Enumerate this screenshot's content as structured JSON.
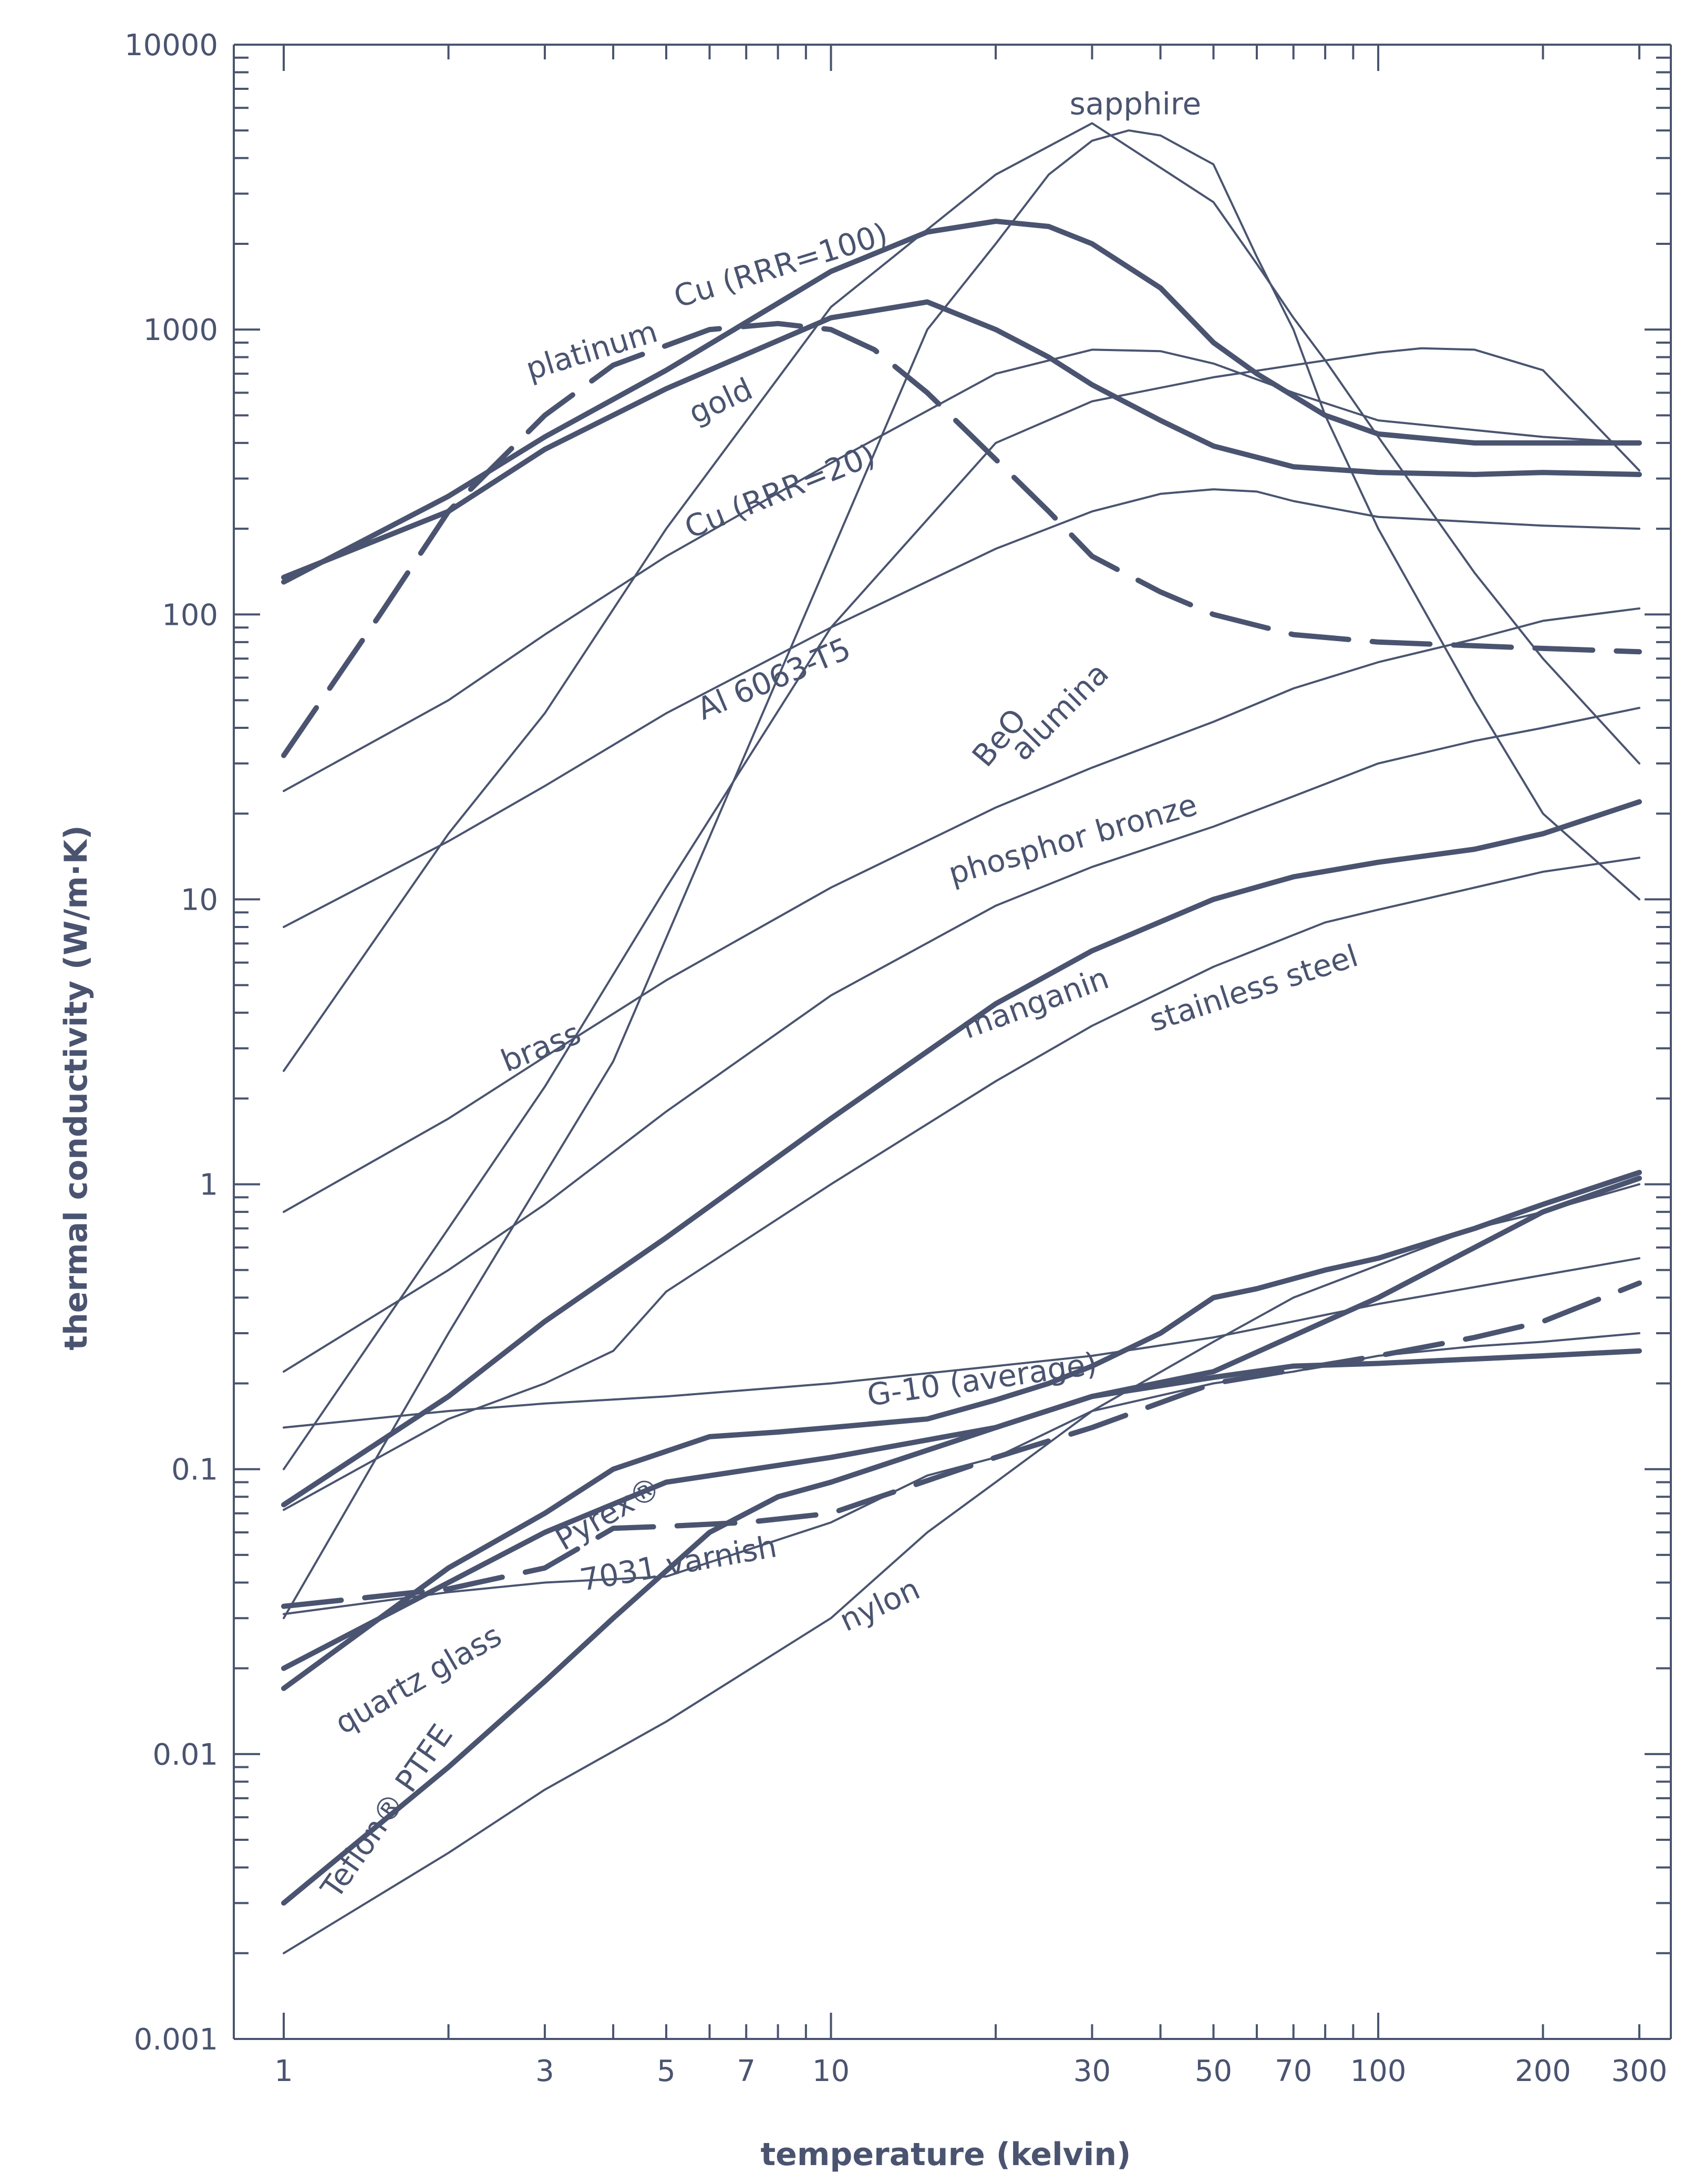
{
  "chart_data": {
    "type": "line",
    "title": "",
    "xlabel": "temperature (kelvin)",
    "ylabel": "thermal conductivity (W/m·K)",
    "x_scale": "log",
    "y_scale": "log",
    "xlim": [
      1,
      300
    ],
    "ylim": [
      0.001,
      10000
    ],
    "x_ticks": [
      1,
      3,
      5,
      7,
      10,
      30,
      50,
      70,
      100,
      200,
      300
    ],
    "x_tick_labels": [
      "1",
      "3",
      "5",
      "7",
      "10",
      "30",
      "50",
      "70",
      "100",
      "200",
      "300"
    ],
    "y_ticks": [
      0.001,
      0.01,
      0.1,
      1,
      10,
      100,
      1000,
      10000
    ],
    "y_tick_labels": [
      "0.001",
      "0.01",
      "0.1",
      "1",
      "10",
      "100",
      "1000",
      "10000"
    ],
    "grid": false,
    "line_color": "#4a5470",
    "series": [
      {
        "name": "sapphire",
        "weight": "thin",
        "dash": "solid",
        "x": [
          1,
          2,
          4,
          8,
          15,
          20,
          25,
          30,
          35,
          40,
          50,
          60,
          70,
          80,
          100,
          150,
          200,
          300
        ],
        "y": [
          0.03,
          0.3,
          2.7,
          60,
          1000,
          2000,
          3500,
          4600,
          5000,
          4800,
          3800,
          1800,
          1000,
          500,
          200,
          50,
          20,
          10
        ]
      },
      {
        "name": "Cu (RRR=100)",
        "weight": "thick",
        "dash": "solid",
        "x": [
          1,
          2,
          3,
          5,
          10,
          15,
          20,
          25,
          30,
          40,
          50,
          60,
          80,
          100,
          150,
          200,
          300
        ],
        "y": [
          130,
          260,
          420,
          720,
          1600,
          2200,
          2400,
          2300,
          2000,
          1400,
          900,
          700,
          500,
          430,
          400,
          400,
          400
        ]
      },
      {
        "name": "platinum",
        "weight": "thick",
        "dash": "dash",
        "x": [
          1,
          1.5,
          2,
          3,
          4,
          6,
          8,
          10,
          12,
          15,
          20,
          25,
          30,
          40,
          50,
          70,
          100,
          200,
          300
        ],
        "y": [
          32,
          100,
          230,
          500,
          750,
          1000,
          1050,
          1000,
          850,
          600,
          350,
          230,
          160,
          120,
          100,
          85,
          80,
          76,
          74
        ]
      },
      {
        "name": "gold",
        "weight": "thick",
        "dash": "solid",
        "x": [
          1,
          2,
          3,
          5,
          10,
          15,
          20,
          25,
          30,
          40,
          50,
          70,
          100,
          150,
          200,
          300
        ],
        "y": [
          135,
          230,
          380,
          620,
          1100,
          1250,
          1000,
          800,
          640,
          480,
          390,
          330,
          315,
          310,
          315,
          310
        ]
      },
      {
        "name": "Cu (RRR=20)",
        "weight": "thin",
        "dash": "solid",
        "x": [
          1,
          2,
          3,
          5,
          10,
          20,
          30,
          40,
          50,
          70,
          100,
          200,
          300
        ],
        "y": [
          24,
          50,
          85,
          160,
          340,
          700,
          850,
          840,
          760,
          600,
          480,
          420,
          400
        ]
      },
      {
        "name": "Al 6063-T5",
        "weight": "thin",
        "dash": "solid",
        "x": [
          1,
          2,
          3,
          5,
          10,
          20,
          30,
          40,
          50,
          60,
          70,
          100,
          200,
          300
        ],
        "y": [
          8,
          16,
          25,
          45,
          90,
          170,
          230,
          265,
          275,
          270,
          250,
          220,
          205,
          200
        ]
      },
      {
        "name": "BeO",
        "weight": "thin",
        "dash": "solid",
        "x": [
          1,
          2,
          3,
          5,
          10,
          20,
          30,
          50,
          60,
          70,
          80,
          100,
          150,
          200,
          300
        ],
        "y": [
          2.5,
          17,
          45,
          200,
          1200,
          3500,
          5300,
          2800,
          1700,
          1100,
          780,
          420,
          140,
          70,
          30
        ]
      },
      {
        "name": "alumina",
        "weight": "thin",
        "dash": "solid",
        "x": [
          1,
          2,
          3,
          5,
          10,
          20,
          30,
          50,
          70,
          100,
          120,
          150,
          200,
          300
        ],
        "y": [
          0.1,
          0.7,
          2.2,
          11,
          90,
          400,
          560,
          680,
          750,
          830,
          860,
          850,
          720,
          320
        ]
      },
      {
        "name": "brass",
        "weight": "thin",
        "dash": "solid",
        "x": [
          1,
          2,
          3,
          5,
          10,
          20,
          30,
          50,
          70,
          100,
          150,
          200,
          300
        ],
        "y": [
          0.8,
          1.7,
          2.8,
          5.2,
          11,
          21,
          29,
          42,
          55,
          68,
          82,
          95,
          105
        ]
      },
      {
        "name": "phosphor bronze",
        "weight": "thin",
        "dash": "solid",
        "x": [
          1,
          2,
          3,
          5,
          10,
          20,
          30,
          50,
          70,
          100,
          150,
          200,
          300
        ],
        "y": [
          0.22,
          0.5,
          0.85,
          1.8,
          4.6,
          9.5,
          13,
          18,
          23,
          30,
          36,
          40,
          47
        ]
      },
      {
        "name": "manganin",
        "weight": "thick",
        "dash": "solid",
        "x": [
          1,
          2,
          3,
          5,
          10,
          20,
          30,
          50,
          70,
          100,
          150,
          200,
          300
        ],
        "y": [
          0.075,
          0.18,
          0.33,
          0.65,
          1.7,
          4.3,
          6.6,
          10,
          12,
          13.5,
          15,
          17,
          22
        ]
      },
      {
        "name": "stainless steel",
        "weight": "thin",
        "dash": "solid",
        "x": [
          1,
          2,
          3,
          4,
          5,
          10,
          20,
          30,
          50,
          70,
          80,
          100,
          150,
          200,
          300
        ],
        "y": [
          0.072,
          0.15,
          0.2,
          0.26,
          0.42,
          1.0,
          2.3,
          3.6,
          5.8,
          7.5,
          8.3,
          9.2,
          11,
          12.5,
          14
        ]
      },
      {
        "name": "G-10 (average)",
        "weight": "thin",
        "dash": "solid",
        "x": [
          1,
          2,
          3,
          5,
          10,
          20,
          30,
          50,
          70,
          100,
          200,
          300
        ],
        "y": [
          0.14,
          0.16,
          0.17,
          0.18,
          0.2,
          0.23,
          0.25,
          0.29,
          0.33,
          0.38,
          0.48,
          0.55
        ]
      },
      {
        "name": "Pyrex®",
        "weight": "thick",
        "dash": "solid",
        "x": [
          1,
          2,
          3,
          4,
          6,
          8,
          10,
          15,
          20,
          25,
          30,
          40,
          50,
          60,
          80,
          100,
          150,
          200,
          300
        ],
        "y": [
          0.017,
          0.045,
          0.07,
          0.1,
          0.13,
          0.135,
          0.14,
          0.15,
          0.175,
          0.2,
          0.23,
          0.3,
          0.4,
          0.43,
          0.5,
          0.55,
          0.7,
          0.85,
          1.1
        ]
      },
      {
        "name": "quartz glass",
        "weight": "thick",
        "dash": "solid",
        "x": [
          1,
          2,
          3,
          5,
          10,
          20,
          30,
          50,
          70,
          100,
          200,
          300
        ],
        "y": [
          0.02,
          0.04,
          0.06,
          0.09,
          0.11,
          0.14,
          0.18,
          0.21,
          0.23,
          0.235,
          0.25,
          0.26
        ]
      },
      {
        "name": "7031 varnish",
        "weight": "thick",
        "dash": "dash",
        "x": [
          1,
          2,
          3,
          4,
          5,
          7,
          10,
          20,
          30,
          50,
          100,
          150,
          200,
          300
        ],
        "y": [
          0.033,
          0.038,
          0.045,
          0.062,
          0.063,
          0.065,
          0.07,
          0.11,
          0.14,
          0.2,
          0.25,
          0.29,
          0.33,
          0.45
        ]
      },
      {
        "name": "nylon",
        "weight": "thin",
        "dash": "solid",
        "x": [
          1,
          2,
          3,
          5,
          10,
          15,
          20,
          30,
          50,
          70,
          100,
          150,
          200,
          300
        ],
        "y": [
          0.031,
          0.037,
          0.04,
          0.042,
          0.065,
          0.095,
          0.11,
          0.16,
          0.2,
          0.22,
          0.25,
          0.27,
          0.28,
          0.3
        ]
      },
      {
        "name": "Teflon® PTFE",
        "weight": "thick",
        "dash": "solid",
        "x": [
          1,
          2,
          3,
          4,
          6,
          8,
          10,
          20,
          30,
          50,
          100,
          200,
          300
        ],
        "y": [
          0.003,
          0.009,
          0.018,
          0.03,
          0.06,
          0.08,
          0.09,
          0.14,
          0.18,
          0.22,
          0.4,
          0.8,
          1.05
        ]
      },
      {
        "name": "",
        "weight": "thin",
        "dash": "solid",
        "x": [
          1,
          2,
          3,
          5,
          10,
          15,
          20,
          30,
          50,
          70,
          100,
          150,
          200,
          300
        ],
        "y": [
          0.002,
          0.0045,
          0.0075,
          0.013,
          0.03,
          0.06,
          0.09,
          0.16,
          0.28,
          0.4,
          0.52,
          0.7,
          0.8,
          1.0
        ]
      }
    ],
    "labels": [
      {
        "text": "sapphire",
        "x": 36,
        "y": 5700,
        "angle": 0
      },
      {
        "text": "Cu (RRR=100)",
        "x": 8.2,
        "y": 1550,
        "angle": -17
      },
      {
        "text": "platinum",
        "x": 3.7,
        "y": 780,
        "angle": -17
      },
      {
        "text": "gold",
        "x": 6.4,
        "y": 520,
        "angle": -25
      },
      {
        "text": "Cu (RRR=20)",
        "x": 8.2,
        "y": 250,
        "angle": -22
      },
      {
        "text": "Al 6063-T5",
        "x": 8.0,
        "y": 55,
        "angle": -23
      },
      {
        "text": "BeO",
        "x": 21.0,
        "y": 35,
        "angle": -50
      },
      {
        "text": "alumina",
        "x": 27.0,
        "y": 43,
        "angle": -45
      },
      {
        "text": "phosphor bronze",
        "x": 28.0,
        "y": 15,
        "angle": -16
      },
      {
        "text": "brass",
        "x": 3.0,
        "y": 2.8,
        "angle": -22
      },
      {
        "text": "manganin",
        "x": 24.0,
        "y": 4.0,
        "angle": -20
      },
      {
        "text": "stainless steel",
        "x": 60.0,
        "y": 4.5,
        "angle": -18
      },
      {
        "text": "G-10 (average)",
        "x": 19.0,
        "y": 0.19,
        "angle": -8
      },
      {
        "text": "Pyrex®",
        "x": 4.0,
        "y": 0.065,
        "angle": -30
      },
      {
        "text": "7031 varnish",
        "x": 5.3,
        "y": 0.043,
        "angle": -10
      },
      {
        "text": "quartz glass",
        "x": 1.8,
        "y": 0.017,
        "angle": -30
      },
      {
        "text": "nylon",
        "x": 12.5,
        "y": 0.031,
        "angle": -25
      },
      {
        "text": "Teflon® PTFE",
        "x": 1.6,
        "y": 0.006,
        "angle": -55
      }
    ]
  }
}
